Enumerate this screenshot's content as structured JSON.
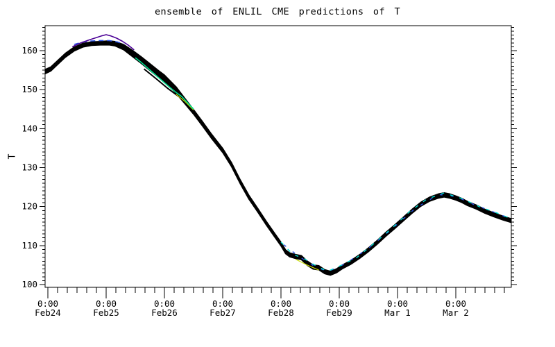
{
  "chart_data": {
    "type": "line",
    "title": "ensemble of ENLIL CME predictions of T",
    "ylabel": "T",
    "xlabel": "",
    "grid": false,
    "legend": null,
    "x_axis": {
      "unit": "days since Feb24 0:00",
      "xlim_days": [
        -0.048,
        7.952
      ],
      "major_ticks_days": [
        0,
        1,
        2,
        3,
        4,
        5,
        6,
        7
      ],
      "minor_tick_step_hours": 4,
      "tick_labels": [
        {
          "time": "0:00",
          "date": "Feb24"
        },
        {
          "time": "0:00",
          "date": "Feb25"
        },
        {
          "time": "0:00",
          "date": "Feb26"
        },
        {
          "time": "0:00",
          "date": "Feb27"
        },
        {
          "time": "0:00",
          "date": "Feb28"
        },
        {
          "time": "0:00",
          "date": "Feb29"
        },
        {
          "time": "0:00",
          "date": "Mar 1"
        },
        {
          "time": "0:00",
          "date": "Mar 2"
        }
      ]
    },
    "y_axis": {
      "ylim": [
        99.3,
        166.4
      ],
      "major_ticks": [
        100,
        110,
        120,
        130,
        140,
        150,
        160
      ],
      "minor_tick_step": 1,
      "minor_tick_max": 166
    },
    "colors": {
      "bundle": "#000000",
      "purple_member": "#4b0096",
      "blue_member": "#2a52e0",
      "green_member": "#00dc8c",
      "cyan_member": "#00ded2",
      "yellow_member": "#c8dc00"
    },
    "ensemble_center": [
      [
        -0.05,
        154.6
      ],
      [
        0.05,
        155.3
      ],
      [
        0.15,
        156.7
      ],
      [
        0.3,
        158.8
      ],
      [
        0.45,
        160.4
      ],
      [
        0.6,
        161.4
      ],
      [
        0.75,
        161.8
      ],
      [
        0.9,
        161.9
      ],
      [
        1.05,
        162.0
      ],
      [
        1.15,
        161.8
      ],
      [
        1.3,
        160.9
      ],
      [
        1.45,
        159.3
      ],
      [
        1.6,
        157.6
      ],
      [
        1.75,
        155.8
      ],
      [
        1.9,
        154.0
      ],
      [
        2.0,
        152.9
      ],
      [
        2.1,
        151.4
      ],
      [
        2.2,
        149.9
      ],
      [
        2.35,
        147.1
      ],
      [
        2.5,
        144.3
      ],
      [
        2.65,
        141.3
      ],
      [
        2.8,
        138.2
      ],
      [
        2.9,
        136.3
      ],
      [
        3.0,
        134.4
      ],
      [
        3.15,
        130.8
      ],
      [
        3.3,
        126.4
      ],
      [
        3.45,
        122.4
      ],
      [
        3.6,
        119.1
      ],
      [
        3.75,
        115.7
      ],
      [
        3.9,
        112.5
      ],
      [
        4.0,
        110.4
      ],
      [
        4.08,
        108.4
      ],
      [
        4.15,
        107.6
      ],
      [
        4.25,
        107.2
      ],
      [
        4.35,
        106.9
      ],
      [
        4.45,
        105.5
      ],
      [
        4.55,
        104.5
      ],
      [
        4.65,
        104.3
      ],
      [
        4.75,
        103.3
      ],
      [
        4.85,
        102.9
      ],
      [
        4.95,
        103.5
      ],
      [
        5.05,
        104.5
      ],
      [
        5.2,
        105.7
      ],
      [
        5.35,
        107.2
      ],
      [
        5.5,
        108.9
      ],
      [
        5.65,
        110.8
      ],
      [
        5.8,
        112.9
      ],
      [
        5.95,
        114.8
      ],
      [
        6.1,
        116.8
      ],
      [
        6.25,
        118.8
      ],
      [
        6.4,
        120.6
      ],
      [
        6.55,
        121.9
      ],
      [
        6.7,
        122.7
      ],
      [
        6.8,
        123.0
      ],
      [
        6.9,
        122.7
      ],
      [
        7.0,
        122.2
      ],
      [
        7.1,
        121.6
      ],
      [
        7.2,
        120.8
      ],
      [
        7.35,
        119.9
      ],
      [
        7.5,
        118.8
      ],
      [
        7.65,
        117.9
      ],
      [
        7.8,
        117.1
      ],
      [
        7.95,
        116.4
      ]
    ],
    "band_halfwidth": [
      [
        -0.05,
        0.55
      ],
      [
        0.5,
        0.5
      ],
      [
        0.9,
        0.45
      ],
      [
        1.2,
        0.6
      ],
      [
        1.5,
        0.85
      ],
      [
        1.8,
        0.9
      ],
      [
        2.2,
        0.85
      ],
      [
        2.5,
        0.6
      ],
      [
        3.0,
        0.55
      ],
      [
        3.6,
        0.5
      ],
      [
        4.0,
        0.5
      ],
      [
        4.5,
        0.55
      ],
      [
        5.0,
        0.5
      ],
      [
        6.0,
        0.5
      ],
      [
        6.8,
        0.55
      ],
      [
        7.95,
        0.5
      ]
    ],
    "members": [
      {
        "name": "black-lower-strand",
        "color": "#000000",
        "width": 2,
        "dash": "",
        "points": [
          [
            1.65,
            155.3
          ],
          [
            1.85,
            152.9
          ],
          [
            2.05,
            150.4
          ],
          [
            2.25,
            148.2
          ]
        ]
      },
      {
        "name": "yellow-decline",
        "color": "#c8dc00",
        "width": 1.2,
        "dash": "",
        "points": [
          [
            2.2,
            148.8
          ],
          [
            2.35,
            147.0
          ],
          [
            2.5,
            144.8
          ]
        ]
      },
      {
        "name": "yellow-dip",
        "color": "#c8dc00",
        "width": 1.2,
        "dash": "",
        "points": [
          [
            4.25,
            106.5
          ],
          [
            4.45,
            105.0
          ],
          [
            4.65,
            103.7
          ]
        ]
      },
      {
        "name": "blue-dashed-top",
        "color": "#2a52e0",
        "width": 1.6,
        "dash": "7 5",
        "points": [
          [
            0.45,
            161.6
          ],
          [
            0.6,
            162.2
          ],
          [
            0.75,
            162.5
          ],
          [
            0.9,
            162.6
          ],
          [
            1.05,
            162.6
          ],
          [
            1.2,
            162.2
          ],
          [
            1.3,
            161.7
          ]
        ]
      },
      {
        "name": "blue-rise-top",
        "color": "#2a52e0",
        "width": 1.4,
        "dash": "4 12",
        "points": [
          [
            4.05,
            110.2
          ],
          [
            4.3,
            107.3
          ],
          [
            4.55,
            104.9
          ],
          [
            4.8,
            103.3
          ],
          [
            5.1,
            105.3
          ],
          [
            5.5,
            109.3
          ],
          [
            5.9,
            114.2
          ],
          [
            6.3,
            119.5
          ],
          [
            6.7,
            123.1
          ],
          [
            7.0,
            122.6
          ],
          [
            7.3,
            120.6
          ],
          [
            7.6,
            118.9
          ],
          [
            7.95,
            116.8
          ]
        ]
      },
      {
        "name": "green-decline-strand",
        "color": "#00dc8c",
        "width": 1.6,
        "dash": "",
        "points": [
          [
            1.5,
            158.2
          ],
          [
            1.6,
            157.0
          ],
          [
            1.7,
            155.7
          ],
          [
            1.8,
            154.4
          ],
          [
            1.9,
            153.1
          ],
          [
            2.0,
            151.8
          ],
          [
            2.1,
            150.5
          ],
          [
            2.2,
            149.3
          ],
          [
            2.3,
            148.2
          ],
          [
            2.4,
            146.6
          ],
          [
            2.5,
            145.0
          ]
        ]
      },
      {
        "name": "cyan-rise-top",
        "color": "#00ded2",
        "width": 1.4,
        "dash": "5 9",
        "points": [
          [
            4.0,
            110.9
          ],
          [
            4.2,
            107.8
          ],
          [
            4.4,
            106.6
          ],
          [
            4.6,
            104.8
          ],
          [
            4.8,
            103.4
          ],
          [
            5.0,
            104.7
          ],
          [
            5.3,
            106.9
          ],
          [
            5.6,
            110.6
          ],
          [
            5.9,
            114.4
          ],
          [
            6.2,
            118.6
          ],
          [
            6.5,
            121.9
          ],
          [
            6.8,
            123.5
          ],
          [
            7.1,
            122.1
          ],
          [
            7.4,
            120.0
          ],
          [
            7.7,
            118.4
          ],
          [
            7.95,
            116.9
          ]
        ]
      },
      {
        "name": "purple-peak",
        "color": "#4b0096",
        "width": 1.6,
        "dash": "",
        "points": [
          [
            0.42,
            161.0
          ],
          [
            0.55,
            161.9
          ],
          [
            0.7,
            162.7
          ],
          [
            0.82,
            163.3
          ],
          [
            0.92,
            163.8
          ],
          [
            1.0,
            164.1
          ],
          [
            1.08,
            163.8
          ],
          [
            1.18,
            163.2
          ],
          [
            1.28,
            162.4
          ],
          [
            1.38,
            161.4
          ],
          [
            1.48,
            160.2
          ]
        ]
      }
    ]
  }
}
